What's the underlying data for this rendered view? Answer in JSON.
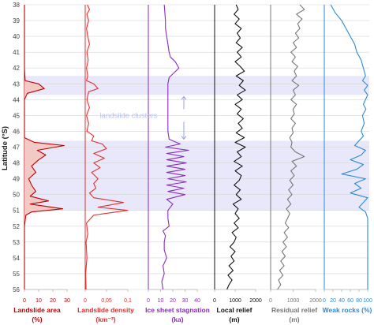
{
  "chart_data": {
    "type": "line",
    "ylabel": "Latitude (°S)",
    "ylim": [
      38,
      56
    ],
    "yticks": [
      38,
      39,
      40,
      41,
      42,
      43,
      44,
      45,
      46,
      47,
      48,
      49,
      50,
      51,
      52,
      53,
      54,
      55,
      56
    ],
    "annotation": "landslide clusters",
    "clusters": [
      [
        42.5,
        43.7
      ],
      [
        46.6,
        51.0
      ]
    ],
    "colors": {
      "band": "#e8e8fa",
      "landslide_area": "#c00000",
      "landslide_fill": "#f2c9c4",
      "landslide_density": "#e03030",
      "ice_sheet": "#8a2bbf",
      "local_relief": "#111111",
      "residual_relief": "#777777",
      "weak_rocks": "#2b8ad6",
      "arrow": "#99a3e0"
    },
    "panels": [
      {
        "key": "landslide_area",
        "title_lines": [
          "Landslide area",
          "(%)"
        ],
        "xlim": [
          0,
          30
        ],
        "xticks": [
          "0",
          "10",
          "20",
          "30"
        ],
        "fill": true,
        "latitude": [
          38,
          40,
          42,
          42.8,
          43.0,
          43.3,
          43.6,
          44,
          46.4,
          46.7,
          46.9,
          47.2,
          47.5,
          47.8,
          48.2,
          48.6,
          49.0,
          49.4,
          49.8,
          50.1,
          50.4,
          50.6,
          50.9,
          51.1,
          51.3,
          52,
          56
        ],
        "values": [
          0,
          0,
          0,
          0.5,
          10,
          14,
          2,
          0,
          0,
          7,
          28,
          9,
          15,
          10,
          5,
          8,
          3,
          5,
          8,
          4,
          17,
          4,
          27,
          5,
          1,
          0,
          0
        ]
      },
      {
        "key": "landslide_density",
        "title_lines": [
          "Landslide density",
          "(km⁻²)"
        ],
        "xlim": [
          0,
          0.1
        ],
        "xticks": [
          "0",
          "0,05",
          "0,1"
        ],
        "fill": false,
        "latitude": [
          38,
          38.3,
          38.6,
          39,
          39.5,
          40,
          40.5,
          41,
          41.5,
          42,
          42.5,
          42.8,
          43.0,
          43.3,
          43.5,
          44,
          44.5,
          45,
          45.5,
          46,
          46.3,
          46.6,
          46.8,
          47.1,
          47.4,
          47.7,
          48.0,
          48.3,
          48.6,
          49.0,
          49.3,
          49.6,
          49.9,
          50.2,
          50.5,
          50.8,
          51.0,
          51.3,
          51.8,
          52.5,
          53,
          54,
          55,
          56
        ],
        "values": [
          0.005,
          0.01,
          0.004,
          0.008,
          0.003,
          0.006,
          0.01,
          0.004,
          0.007,
          0.003,
          0.006,
          0.003,
          0.02,
          0.03,
          0.008,
          0.004,
          0.01,
          0.003,
          0.008,
          0.004,
          0.02,
          0.015,
          0.04,
          0.05,
          0.02,
          0.045,
          0.02,
          0.035,
          0.015,
          0.03,
          0.02,
          0.025,
          0.01,
          0.02,
          0.09,
          0.03,
          0.1,
          0.02,
          0.003,
          0.006,
          0.002,
          0.004,
          0.001,
          0.002
        ]
      },
      {
        "key": "ice_sheet",
        "title_lines": [
          "Ice sheet stagnation",
          "(ka)"
        ],
        "xlim": [
          0,
          40
        ],
        "xticks": [
          "0",
          "10",
          "20",
          "30",
          "40"
        ],
        "fill": false,
        "latitude": [
          38,
          39,
          39.5,
          40,
          40.5,
          41,
          41.3,
          41.6,
          42,
          42.3,
          42.6,
          43,
          44,
          45,
          46,
          46.5,
          46.8,
          47.0,
          47.2,
          47.4,
          47.6,
          47.8,
          48.0,
          48.2,
          48.4,
          48.6,
          48.8,
          49.0,
          49.2,
          49.4,
          49.6,
          49.8,
          50.0,
          50.3,
          50.6,
          51,
          51.5,
          52,
          52.3,
          52.6,
          53,
          53.5,
          54,
          54.5,
          55,
          55.5,
          56
        ],
        "values": [
          13,
          14,
          14,
          15,
          16,
          17,
          18,
          22,
          25,
          21,
          17,
          16,
          16,
          16,
          16,
          17,
          26,
          14,
          33,
          15,
          29,
          15,
          31,
          15,
          30,
          15,
          30,
          16,
          31,
          15,
          29,
          16,
          30,
          15,
          20,
          16,
          16,
          17,
          12,
          14,
          13,
          13,
          15,
          12,
          13,
          11,
          12
        ]
      },
      {
        "key": "local_relief",
        "title_lines": [
          "Local relief",
          "(m)"
        ],
        "xlim": [
          0,
          2000
        ],
        "xticks": [
          "0",
          "1000",
          "2000"
        ],
        "fill": false,
        "latitude": [
          38,
          38.3,
          38.6,
          38.9,
          39.2,
          39.5,
          39.8,
          40.1,
          40.4,
          40.7,
          41.0,
          41.3,
          41.6,
          41.9,
          42.2,
          42.5,
          42.8,
          43.1,
          43.4,
          43.7,
          44.0,
          44.3,
          44.6,
          44.9,
          45.2,
          45.5,
          45.8,
          46.1,
          46.4,
          46.7,
          47.0,
          47.3,
          47.6,
          47.9,
          48.2,
          48.5,
          48.8,
          49.1,
          49.4,
          49.7,
          50.0,
          50.3,
          50.6,
          50.9,
          51.2,
          51.5,
          51.8,
          52.1,
          52.4,
          52.7,
          53.0,
          53.3,
          53.6,
          53.9,
          54.2,
          54.5,
          54.8,
          55.1,
          55.4,
          55.7,
          56.0
        ],
        "values": [
          1050,
          1150,
          950,
          1200,
          1000,
          1300,
          1100,
          1250,
          1050,
          1350,
          1100,
          1300,
          1000,
          1250,
          1450,
          1050,
          1400,
          1200,
          1500,
          1100,
          1350,
          1000,
          1300,
          1100,
          1400,
          1150,
          1350,
          1050,
          1450,
          1000,
          1500,
          1100,
          1300,
          950,
          1350,
          1000,
          1300,
          1200,
          950,
          1250,
          1050,
          1300,
          900,
          1150,
          1000,
          1200,
          950,
          1150,
          850,
          1050,
          950,
          750,
          1000,
          800,
          950,
          700,
          900,
          650,
          850,
          700,
          600
        ]
      },
      {
        "key": "residual_relief",
        "title_lines": [
          "Residual relief",
          "(m)"
        ],
        "xlim": [
          0,
          2000
        ],
        "xticks": [
          "0",
          "1000",
          "2000"
        ],
        "fill": false,
        "latitude": [
          38,
          38.3,
          38.6,
          38.9,
          39.2,
          39.5,
          39.8,
          40.1,
          40.4,
          40.7,
          41.0,
          41.3,
          41.6,
          41.9,
          42.2,
          42.5,
          42.8,
          43.1,
          43.4,
          43.7,
          44.0,
          44.3,
          44.6,
          44.9,
          45.2,
          45.5,
          45.8,
          46.1,
          46.4,
          46.7,
          47.0,
          47.3,
          47.6,
          47.9,
          48.2,
          48.5,
          48.8,
          49.1,
          49.4,
          49.7,
          50.0,
          50.3,
          50.6,
          50.9,
          51.2,
          51.5,
          51.8,
          52.1,
          52.4,
          52.7,
          53.0,
          53.3,
          53.6,
          53.9,
          54.2,
          54.5,
          54.8,
          55.1,
          55.4,
          55.7,
          56.0
        ],
        "values": [
          1300,
          1500,
          1150,
          1400,
          1200,
          1300,
          1100,
          1250,
          1000,
          1150,
          900,
          1100,
          950,
          1200,
          1050,
          1150,
          950,
          1250,
          1000,
          1100,
          900,
          1150,
          1000,
          1050,
          900,
          1100,
          950,
          1000,
          850,
          950,
          900,
          1100,
          1500,
          950,
          1150,
          900,
          1050,
          850,
          1000,
          800,
          950,
          750,
          900,
          700,
          850,
          750,
          650,
          800,
          600,
          750,
          550,
          700,
          500,
          650,
          450,
          600,
          400,
          550,
          350,
          450,
          300
        ]
      },
      {
        "key": "weak_rocks",
        "title_lines": [
          "Weak rocks (%)"
        ],
        "xlim": [
          0,
          100
        ],
        "xticks": [
          "0",
          "20",
          "40",
          "60",
          "80",
          "100"
        ],
        "fill": false,
        "latitude": [
          38,
          38.5,
          39,
          39.5,
          40,
          40.5,
          41,
          41.5,
          42,
          42.5,
          42.8,
          43.1,
          43.4,
          43.7,
          44.0,
          44.3,
          44.6,
          45,
          45.5,
          46,
          46.3,
          46.6,
          46.9,
          47.2,
          47.5,
          47.8,
          48.1,
          48.4,
          48.7,
          49.0,
          49.3,
          49.6,
          49.9,
          50.2,
          50.5,
          50.8,
          51.1,
          51.5,
          52,
          53,
          54,
          55,
          56
        ],
        "values": [
          15,
          25,
          40,
          50,
          60,
          70,
          75,
          85,
          90,
          95,
          88,
          100,
          92,
          100,
          95,
          90,
          96,
          88,
          92,
          85,
          90,
          80,
          70,
          95,
          85,
          60,
          90,
          75,
          40,
          95,
          70,
          85,
          60,
          100,
          90,
          80,
          95,
          100,
          100,
          100,
          100,
          100,
          100
        ]
      }
    ]
  }
}
